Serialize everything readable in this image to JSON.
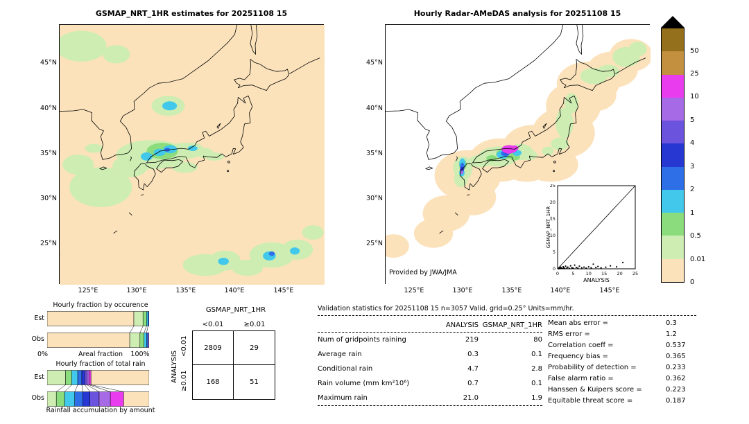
{
  "palette": {
    "peach": "#fbe2bb",
    "pale": "#cdedb2",
    "green2": "#8bdc7c",
    "cyan": "#41c8ea",
    "blue2": "#2e6fe8",
    "blue3": "#2637d2",
    "violet": "#6b53de",
    "purple": "#a76ae6",
    "magenta": "#e93cee",
    "brown": "#c2903f",
    "darkbrown": "#94701c"
  },
  "chart_data": {
    "type": "composite",
    "lon_range": [
      122,
      149.2
    ],
    "lat_range": [
      20.5,
      49.25
    ],
    "left_map": {
      "title": "GSMAP_NRT_1HR estimates for 20251108 15",
      "x_ticks": [
        "125°E",
        "130°E",
        "135°E",
        "140°E",
        "145°E"
      ],
      "y_ticks": [
        "45°N",
        "40°N",
        "35°N",
        "30°N",
        "25°N"
      ],
      "x_tick_lons": [
        125,
        130,
        135,
        140,
        145
      ],
      "y_tick_lats": [
        45,
        40,
        35,
        30,
        25
      ],
      "rain": [
        [
          126.3,
          31.3,
          3.2,
          2.2,
          "pale"
        ],
        [
          124.0,
          33.8,
          1.6,
          1.1,
          "pale"
        ],
        [
          124.3,
          46.9,
          2.6,
          1.7,
          "pale"
        ],
        [
          127.9,
          46.0,
          1.4,
          1.0,
          "pale"
        ],
        [
          133.2,
          40.3,
          1.7,
          1.1,
          "pale"
        ],
        [
          133.35,
          40.3,
          0.75,
          0.5,
          "cyan"
        ],
        [
          131.5,
          34.9,
          3.6,
          1.6,
          "pale"
        ],
        [
          129.3,
          33.6,
          1.8,
          1.2,
          "pale"
        ],
        [
          134.8,
          35.3,
          1.8,
          0.9,
          "pale"
        ],
        [
          125.6,
          35.6,
          0.9,
          0.5,
          "pale"
        ],
        [
          132.6,
          35.3,
          1.6,
          0.9,
          "green2"
        ],
        [
          131.0,
          34.7,
          0.6,
          0.45,
          "cyan"
        ],
        [
          132.3,
          35.15,
          0.6,
          0.4,
          "cyan"
        ],
        [
          133.4,
          35.5,
          0.7,
          0.45,
          "cyan"
        ],
        [
          133.1,
          35.45,
          0.3,
          0.22,
          "blue2"
        ],
        [
          135.65,
          35.6,
          1.1,
          0.6,
          "pale"
        ],
        [
          135.7,
          35.6,
          0.5,
          0.3,
          "cyan"
        ],
        [
          136.9,
          35.1,
          0.9,
          0.55,
          "pale"
        ],
        [
          137.9,
          34.7,
          1.0,
          0.45,
          "pale"
        ],
        [
          134.9,
          33.5,
          1.3,
          0.6,
          "pale"
        ],
        [
          137.0,
          22.7,
          2.3,
          1.2,
          "pale"
        ],
        [
          139.0,
          23.2,
          1.6,
          1.1,
          "pale"
        ],
        [
          138.85,
          23.1,
          0.55,
          0.4,
          "cyan"
        ],
        [
          141.3,
          22.4,
          1.6,
          0.9,
          "pale"
        ],
        [
          143.8,
          23.8,
          2.3,
          1.4,
          "pale"
        ],
        [
          143.55,
          23.7,
          0.65,
          0.5,
          "cyan"
        ],
        [
          143.8,
          23.95,
          0.3,
          0.25,
          "blue2"
        ],
        [
          146.4,
          24.4,
          1.6,
          1.1,
          "pale"
        ],
        [
          146.15,
          24.25,
          0.5,
          0.4,
          "cyan"
        ],
        [
          148.0,
          26.3,
          1.1,
          0.8,
          "pale"
        ]
      ]
    },
    "right_map": {
      "title": "Hourly Radar-AMeDAS analysis for 20251108 15",
      "credit": "Provided by JWA/JMA",
      "x_ticks": [
        "125°E",
        "130°E",
        "135°E",
        "140°E",
        "145°E"
      ],
      "y_ticks": [
        "45°N",
        "40°N",
        "35°N",
        "30°N",
        "25°N"
      ],
      "x_tick_lons": [
        125,
        130,
        135,
        140,
        145
      ],
      "y_tick_lats": [
        45,
        40,
        35,
        30,
        25
      ],
      "rain": [
        [
          130.5,
          32.6,
          3.4,
          2.8,
          "peach"
        ],
        [
          133.8,
          34.3,
          3.2,
          2.4,
          "peach"
        ],
        [
          137.2,
          35.6,
          3.2,
          2.6,
          "peach"
        ],
        [
          140.3,
          37.3,
          3.2,
          2.8,
          "peach"
        ],
        [
          141.3,
          40.3,
          2.8,
          2.6,
          "peach"
        ],
        [
          142.8,
          42.8,
          3.2,
          2.4,
          "peach"
        ],
        [
          145.3,
          44.3,
          2.6,
          2.0,
          "peach"
        ],
        [
          147.2,
          45.9,
          2.2,
          1.8,
          "peach"
        ],
        [
          139.0,
          33.8,
          2.8,
          1.9,
          "peach"
        ],
        [
          128.3,
          28.4,
          2.4,
          2.0,
          "peach"
        ],
        [
          127.0,
          26.2,
          2.0,
          1.6,
          "peach"
        ],
        [
          131.0,
          30.2,
          2.4,
          2.0,
          "peach"
        ],
        [
          122.9,
          24.8,
          1.6,
          1.3,
          "peach"
        ],
        [
          136.5,
          33.3,
          2.2,
          1.4,
          "peach"
        ],
        [
          143.5,
          41.5,
          2.2,
          1.8,
          "peach"
        ],
        [
          133.6,
          34.7,
          2.0,
          1.1,
          "pale"
        ],
        [
          135.9,
          35.2,
          1.3,
          0.9,
          "pale"
        ],
        [
          131.8,
          34.2,
          1.2,
          0.7,
          "pale"
        ],
        [
          130.0,
          33.4,
          1.0,
          1.3,
          "pale"
        ],
        [
          129.8,
          32.2,
          0.7,
          0.9,
          "pale"
        ],
        [
          140.4,
          38.4,
          0.9,
          1.7,
          "pale"
        ],
        [
          141.1,
          40.6,
          0.7,
          1.1,
          "pale"
        ],
        [
          139.9,
          36.1,
          0.9,
          0.7,
          "pale"
        ],
        [
          138.7,
          35.3,
          0.6,
          0.5,
          "pale"
        ],
        [
          143.4,
          43.6,
          1.4,
          0.9,
          "pale"
        ],
        [
          144.9,
          44.15,
          1.1,
          0.7,
          "pale"
        ],
        [
          146.7,
          45.7,
          1.4,
          1.1,
          "pale"
        ],
        [
          147.9,
          46.6,
          0.9,
          0.8,
          "pale"
        ],
        [
          136.8,
          34.85,
          0.8,
          0.55,
          "pale"
        ],
        [
          134.3,
          35.0,
          0.9,
          0.6,
          "green2"
        ],
        [
          135.3,
          34.65,
          0.55,
          0.4,
          "green2"
        ],
        [
          132.95,
          34.5,
          0.55,
          0.35,
          "green2"
        ],
        [
          130.0,
          33.8,
          0.4,
          0.55,
          "green2"
        ],
        [
          134.05,
          34.9,
          0.6,
          0.45,
          "cyan"
        ],
        [
          135.55,
          35.1,
          0.45,
          0.33,
          "cyan"
        ],
        [
          129.95,
          33.9,
          0.32,
          0.6,
          "cyan"
        ],
        [
          129.9,
          32.9,
          0.28,
          0.4,
          "cyan"
        ],
        [
          134.35,
          35.05,
          0.45,
          0.32,
          "blue2"
        ],
        [
          129.95,
          33.55,
          0.22,
          0.45,
          "blue2"
        ],
        [
          134.55,
          35.2,
          0.34,
          0.26,
          "blue3"
        ],
        [
          129.9,
          33.25,
          0.2,
          0.33,
          "blue3"
        ],
        [
          134.65,
          35.3,
          0.38,
          0.3,
          "violet"
        ],
        [
          129.87,
          33.0,
          0.17,
          0.22,
          "violet"
        ],
        [
          134.7,
          35.42,
          0.6,
          0.42,
          "purple"
        ],
        [
          135.15,
          35.55,
          0.33,
          0.27,
          "purple"
        ],
        [
          129.9,
          32.93,
          0.15,
          0.17,
          "purple"
        ],
        [
          134.75,
          35.5,
          0.8,
          0.45,
          "magenta"
        ],
        [
          135.3,
          35.62,
          0.38,
          0.3,
          "magenta"
        ]
      ],
      "inset": {
        "x_label": "ANALYSIS",
        "y_label": "GSMAP_NRT_1HR",
        "x_ticks": [
          0,
          5,
          10,
          15,
          20,
          25
        ],
        "y_ticks": [
          0,
          5,
          10,
          15,
          20,
          25
        ],
        "max": 25,
        "points": [
          [
            0.2,
            0.1
          ],
          [
            0.4,
            0.05
          ],
          [
            0.5,
            0.3
          ],
          [
            0.8,
            0.1
          ],
          [
            1.0,
            0.5
          ],
          [
            1.2,
            0.2
          ],
          [
            1.5,
            0.1
          ],
          [
            1.8,
            0.6
          ],
          [
            2.0,
            0.3
          ],
          [
            2.3,
            0.1
          ],
          [
            2.6,
            0.8
          ],
          [
            3.0,
            0.2
          ],
          [
            3.3,
            0.5
          ],
          [
            3.8,
            0.1
          ],
          [
            4.2,
            0.9
          ],
          [
            4.6,
            0.3
          ],
          [
            5.0,
            0.2
          ],
          [
            5.5,
            1.1
          ],
          [
            6.0,
            0.4
          ],
          [
            6.5,
            0.2
          ],
          [
            7.0,
            0.8
          ],
          [
            7.8,
            0.3
          ],
          [
            8.5,
            0.5
          ],
          [
            9.2,
            0.2
          ],
          [
            10.0,
            0.6
          ],
          [
            10.8,
            0.3
          ],
          [
            11.5,
            1.4
          ],
          [
            12.3,
            0.4
          ],
          [
            13.0,
            0.7
          ],
          [
            14.0,
            0.3
          ],
          [
            15.5,
            0.5
          ],
          [
            17.0,
            0.9
          ],
          [
            19.0,
            0.6
          ],
          [
            21.0,
            1.9
          ]
        ]
      }
    },
    "colorbar": {
      "segments": [
        {
          "color": "darkbrown",
          "label": "50"
        },
        {
          "color": "brown",
          "label": "25"
        },
        {
          "color": "magenta",
          "label": "10"
        },
        {
          "color": "purple",
          "label": "5"
        },
        {
          "color": "violet",
          "label": "4"
        },
        {
          "color": "blue3",
          "label": "3"
        },
        {
          "color": "blue2",
          "label": "2"
        },
        {
          "color": "cyan",
          "label": "1"
        },
        {
          "color": "green2",
          "label": "0.5"
        },
        {
          "color": "pale",
          "label": "0.01"
        },
        {
          "color": "peach",
          "label": "0"
        }
      ]
    },
    "occurrence": {
      "title": "Hourly fraction by occurence",
      "row_labels": [
        "Est",
        "Obs"
      ],
      "axis_left": "0%",
      "axis_center": "Areal fraction",
      "axis_right": "100%",
      "est": [
        [
          "peach",
          85
        ],
        [
          "pale",
          9
        ],
        [
          "green2",
          3.5
        ],
        [
          "cyan",
          1.5
        ],
        [
          "blue2",
          1
        ]
      ],
      "obs": [
        [
          "peach",
          81
        ],
        [
          "pale",
          10
        ],
        [
          "green2",
          4
        ],
        [
          "cyan",
          2.5
        ],
        [
          "blue2",
          1.5
        ],
        [
          "purple",
          1
        ]
      ]
    },
    "totalrain": {
      "title": "Hourly fraction of total rain",
      "row_labels": [
        "Est",
        "Obs"
      ],
      "caption": "Rainfall accumulation by amount",
      "est": [
        [
          "pale",
          18
        ],
        [
          "green2",
          6
        ],
        [
          "cyan",
          6
        ],
        [
          "blue2",
          4
        ],
        [
          "blue3",
          3
        ],
        [
          "violet",
          2
        ],
        [
          "purple",
          2
        ],
        [
          "magenta",
          2
        ],
        [
          "peach",
          57
        ]
      ],
      "obs": [
        [
          "pale",
          9
        ],
        [
          "green2",
          8
        ],
        [
          "cyan",
          10
        ],
        [
          "blue2",
          8
        ],
        [
          "blue3",
          7
        ],
        [
          "violet",
          9
        ],
        [
          "purple",
          11
        ],
        [
          "magenta",
          13
        ],
        [
          "peach",
          25
        ]
      ]
    },
    "contingency": {
      "title": "GSMAP_NRT_1HR",
      "col_labels": [
        "<0.01",
        "≥0.01"
      ],
      "row_axis": "ANALYSIS",
      "row_labels": [
        "<0.01",
        "≥0.01"
      ],
      "values": [
        [
          2809,
          29
        ],
        [
          168,
          51
        ]
      ]
    },
    "stats": {
      "title": "Validation statistics for 20251108 15  n=3057 Valid. grid=0.25° Units=mm/hr.",
      "col_headers": [
        "ANALYSIS",
        "GSMAP_NRT_1HR"
      ],
      "rows": [
        {
          "label": "Num of gridpoints raining",
          "analysis": "219",
          "gsmap": "80"
        },
        {
          "label": "Average rain",
          "analysis": "0.3",
          "gsmap": "0.1"
        },
        {
          "label": "Conditional rain",
          "analysis": "4.7",
          "gsmap": "2.8"
        },
        {
          "label": "Rain volume (mm km²10⁶)",
          "analysis": "0.7",
          "gsmap": "0.1"
        },
        {
          "label": "Maximum rain",
          "analysis": "21.0",
          "gsmap": "1.9"
        }
      ],
      "scores": [
        {
          "label": "Mean abs error =",
          "value": "0.3"
        },
        {
          "label": "RMS error =",
          "value": "1.2"
        },
        {
          "label": "Correlation coeff =",
          "value": "0.537"
        },
        {
          "label": "Frequency bias =",
          "value": "0.365"
        },
        {
          "label": "Probability of detection =",
          "value": "0.233"
        },
        {
          "label": "False alarm ratio =",
          "value": "0.362"
        },
        {
          "label": "Hanssen & Kuipers score =",
          "value": "0.223"
        },
        {
          "label": "Equitable threat score =",
          "value": "0.187"
        }
      ]
    }
  }
}
